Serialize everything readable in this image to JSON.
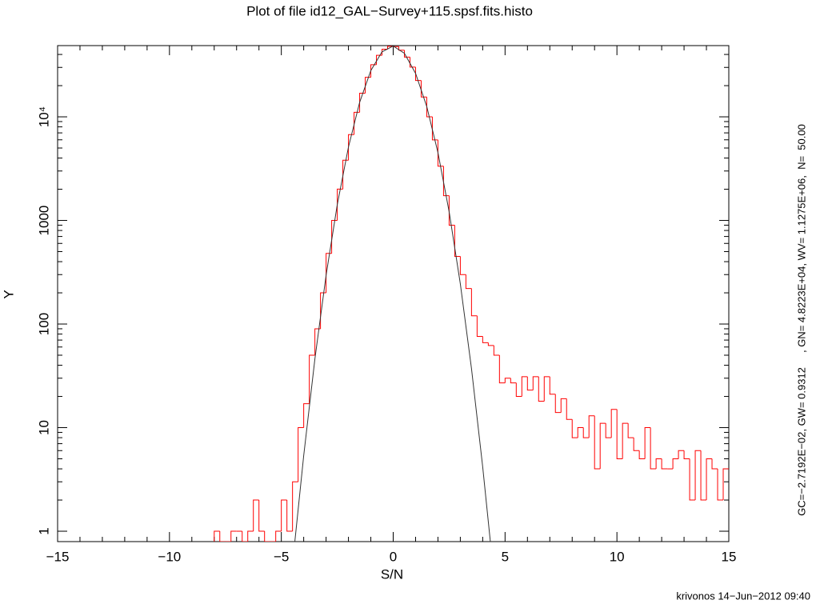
{
  "chart_data": {
    "type": "histogram",
    "title": "Plot of file id12_GAL−Survey+115.spsf.fits.histo",
    "x_label": "S/N",
    "y_label": "Y",
    "annotations": [
      "GC=−2.7192E−02, GW= 0.9312     , GN= 4.8223E+04, WV= 1.1275E+06,  N=  50.00",
      "krivonos 14−Jun−2012 09:40"
    ],
    "log_y": true,
    "color": "#ff0000",
    "bins": [
      -8,
      -7.75,
      -7.5,
      -7.25,
      -7,
      -6.75,
      -6.5,
      -6.25,
      -6,
      -5.75,
      -5.5,
      -5.25,
      -5,
      -4.75,
      -4.5,
      -4.25,
      -4,
      -3.75,
      -3.5,
      -3.25,
      -3,
      -2.75,
      -2.5,
      -2.25,
      -2,
      -1.75,
      -1.5,
      -1.25,
      -1,
      -0.75,
      -0.5,
      -0.25,
      0,
      0.25,
      0.5,
      0.75,
      1,
      1.25,
      1.5,
      1.75,
      2,
      2.25,
      2.5,
      2.75,
      3,
      3.25,
      3.5,
      3.75,
      4,
      4.25,
      4.5,
      4.75,
      5,
      5.25,
      5.5,
      5.75,
      6,
      6.25,
      6.5,
      6.75,
      7,
      7.25,
      7.5,
      7.75,
      8,
      8.25,
      8.5,
      8.75,
      9,
      9.25,
      9.5,
      9.75,
      10,
      10.25,
      10.5,
      10.75,
      11,
      11.25,
      11.5,
      11.75,
      12,
      12.25,
      12.5,
      12.75,
      13,
      13.25,
      13.5,
      13.75,
      14,
      14.25,
      14.5,
      14.75,
      15
    ],
    "values": [
      1,
      0,
      0,
      1,
      1,
      0,
      1,
      2,
      1,
      0,
      0,
      1,
      2,
      1,
      3,
      10,
      17,
      50,
      90,
      200,
      480,
      1000,
      2007,
      3810,
      6730,
      11060,
      16910,
      24060,
      31860,
      39240,
      44970,
      47960,
      47590,
      43930,
      37740,
      30170,
      22430,
      15530,
      10000,
      5990,
      3340,
      1731,
      900,
      450,
      300,
      220,
      120,
      76,
      66,
      62,
      50,
      27,
      30,
      27,
      20,
      31,
      23,
      31,
      18,
      31,
      21,
      14,
      19,
      12,
      8,
      10,
      8,
      13,
      4,
      11,
      8,
      15,
      5,
      11,
      8,
      6,
      5,
      10,
      4,
      5,
      4,
      4,
      5,
      6,
      5,
      2,
      6,
      2,
      5,
      4,
      2,
      4
    ],
    "fit_curve": {
      "color": "#333333",
      "x": [
        -4.4,
        -4,
        -3.5,
        -3,
        -2.5,
        -2,
        -1.5,
        -1,
        -0.5,
        0,
        0.5,
        1,
        1.5,
        2,
        2.5,
        3,
        3.5,
        4,
        4.4
      ],
      "y": [
        0.78,
        5.37,
        46.0,
        295,
        1418,
        5108,
        13800,
        27935,
        42390,
        48203,
        41090,
        26250,
        12570,
        4512,
        1214,
        245,
        37.0,
        4.18,
        0.6
      ]
    },
    "xlim": [
      -15,
      15
    ],
    "xticks": [
      {
        "value": -15,
        "label": "−15"
      },
      {
        "value": -10,
        "label": "−10"
      },
      {
        "value": -5,
        "label": "−5"
      },
      0,
      5,
      10,
      15
    ],
    "xminorticks": [
      -14,
      -13,
      -12,
      -11,
      -9,
      -8,
      -7,
      -6,
      -4,
      -3,
      -2,
      -1,
      1,
      2,
      3,
      4,
      6,
      7,
      8,
      9,
      11,
      12,
      13,
      14
    ],
    "ylim": [
      0.794,
      48700
    ],
    "yticks": [
      1,
      10,
      100,
      1000,
      {
        "value": 10000,
        "label": "10⁴"
      }
    ],
    "yminorticks": [
      2,
      3,
      4,
      5,
      6,
      7,
      8,
      9,
      20,
      30,
      40,
      50,
      60,
      70,
      80,
      90,
      200,
      300,
      400,
      500,
      600,
      700,
      800,
      900,
      2000,
      3000,
      4000,
      5000,
      6000,
      7000,
      8000,
      9000,
      20000,
      30000,
      40000
    ]
  }
}
